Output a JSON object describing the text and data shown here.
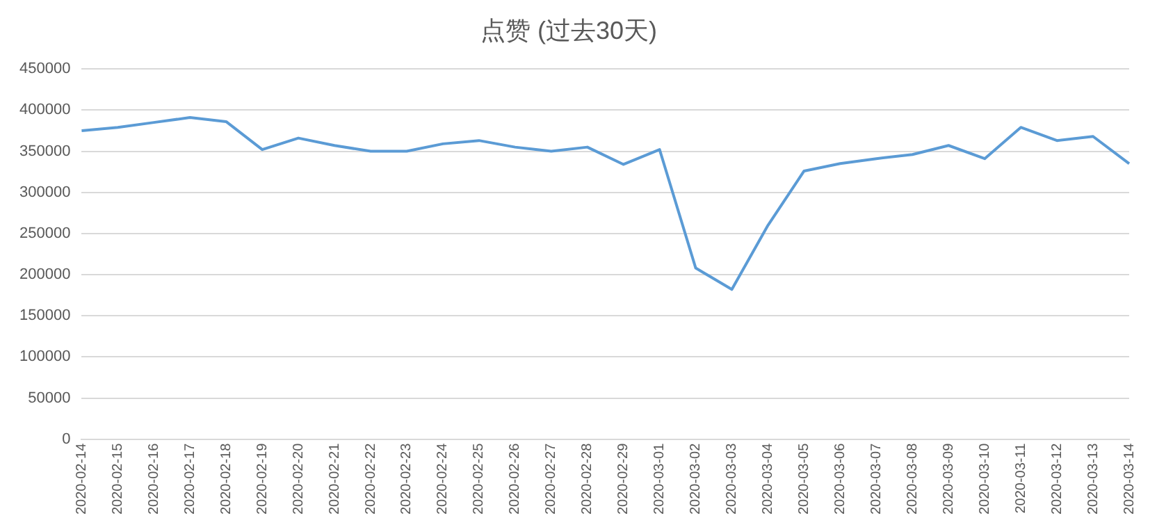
{
  "chart_data": {
    "type": "line",
    "title": "点赞 (过去30天)",
    "categories": [
      "2020-02-14",
      "2020-02-15",
      "2020-02-16",
      "2020-02-17",
      "2020-02-18",
      "2020-02-19",
      "2020-02-20",
      "2020-02-21",
      "2020-02-22",
      "2020-02-23",
      "2020-02-24",
      "2020-02-25",
      "2020-02-26",
      "2020-02-27",
      "2020-02-28",
      "2020-02-29",
      "2020-03-01",
      "2020-03-02",
      "2020-03-03",
      "2020-03-04",
      "2020-03-05",
      "2020-03-06",
      "2020-03-07",
      "2020-03-08",
      "2020-03-09",
      "2020-03-10",
      "2020-03-11",
      "2020-03-12",
      "2020-03-13",
      "2020-03-14"
    ],
    "series": [
      {
        "color": "#5b9bd5",
        "values": [
          375000,
          379000,
          385000,
          391000,
          386000,
          352000,
          366000,
          357000,
          350000,
          350000,
          359000,
          363000,
          355000,
          350000,
          355000,
          334000,
          352000,
          208000,
          182000,
          260000,
          326000,
          335000,
          341000,
          346000,
          357000,
          341000,
          379000,
          363000,
          368000,
          335000
        ]
      }
    ],
    "ylim": [
      0,
      450000
    ],
    "yticks": [
      0,
      50000,
      100000,
      150000,
      200000,
      250000,
      300000,
      350000,
      400000,
      450000
    ],
    "grid": "y",
    "legend": false,
    "marker": "none",
    "line_style": "solid"
  }
}
